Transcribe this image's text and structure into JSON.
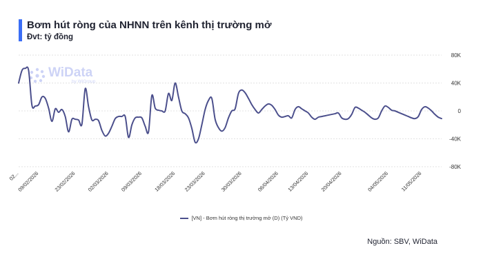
{
  "header": {
    "title": "Bơm hút ròng của NHNN trên kênh thị trường mở",
    "subtitle": "Đvt: tỷ đồng"
  },
  "watermark": {
    "brand": "WiData",
    "sub": "by WiGroup"
  },
  "legend": {
    "label": "[VN] - Bơm hút ròng thị trường mở (D) (Tỷ VND)"
  },
  "source": "Nguồn: SBV, WiData",
  "colors": {
    "line": "#4b4f8c",
    "accent": "#3b6ef5",
    "grid": "#d9d9d9"
  },
  "chart_data": {
    "type": "line",
    "title": "Bơm hút ròng của NHNN trên kênh thị trường mở",
    "ylabel": "Đvt: tỷ đồng",
    "ylim": [
      -80000,
      80000
    ],
    "yticks": [
      -80000,
      -40000,
      0,
      40000,
      80000
    ],
    "ytick_labels": [
      "-80K",
      "-40K",
      "0",
      "40K",
      "80K"
    ],
    "xtick_labels": [
      "02...",
      "09/02/2026",
      "23/02/2026",
      "02/03/2026",
      "09/03/2026",
      "18/03/2026",
      "23/03/2026",
      "30/03/2026",
      "06/04/2026",
      "13/04/2026",
      "20/04/2026",
      "04/05/2026",
      "11/05/2026"
    ],
    "xtick_index": [
      0,
      6,
      17,
      27,
      37,
      47,
      56,
      67,
      78,
      87,
      97,
      111,
      121
    ],
    "grid": true,
    "legend_position": "bottom",
    "series": [
      {
        "name": "[VN] - Bơm hút ròng thị trường mở (D) (Tỷ VND)",
        "values": [
          40000,
          58000,
          61000,
          58000,
          8000,
          7000,
          9000,
          20000,
          18000,
          4000,
          -15000,
          3000,
          -2000,
          2000,
          -8000,
          -30000,
          -12000,
          -12000,
          -13000,
          -19000,
          32000,
          6000,
          -13000,
          -12000,
          -14000,
          -28000,
          -36000,
          -32000,
          -22000,
          -11000,
          -8000,
          -8000,
          -8000,
          -38000,
          -20000,
          -10000,
          -9000,
          -10000,
          -22000,
          -30000,
          22000,
          4000,
          1000,
          0,
          0,
          25000,
          15000,
          40000,
          20000,
          0,
          -4000,
          -10000,
          -25000,
          -45000,
          -40000,
          -20000,
          2000,
          15000,
          18000,
          -12000,
          -24000,
          -29000,
          -24000,
          -10000,
          0,
          3000,
          25000,
          30000,
          26000,
          18000,
          9000,
          2000,
          -3000,
          2000,
          7000,
          10000,
          8000,
          2000,
          -6000,
          -9000,
          -8000,
          -7000,
          -10000,
          2000,
          6000,
          3000,
          0,
          -3000,
          -9000,
          -12000,
          -9000,
          -8000,
          -7000,
          -6000,
          -5000,
          -4000,
          -3000,
          -10000,
          -12000,
          -11000,
          -5000,
          5000,
          4000,
          1000,
          -2000,
          -6000,
          -10000,
          -12000,
          -10000,
          0,
          7000,
          5000,
          1000,
          0,
          -2000,
          -4000,
          -6000,
          -8000,
          -10000,
          -11000,
          -8000,
          2000,
          6000,
          4000,
          0,
          -5000,
          -9000,
          -11000
        ]
      }
    ]
  }
}
